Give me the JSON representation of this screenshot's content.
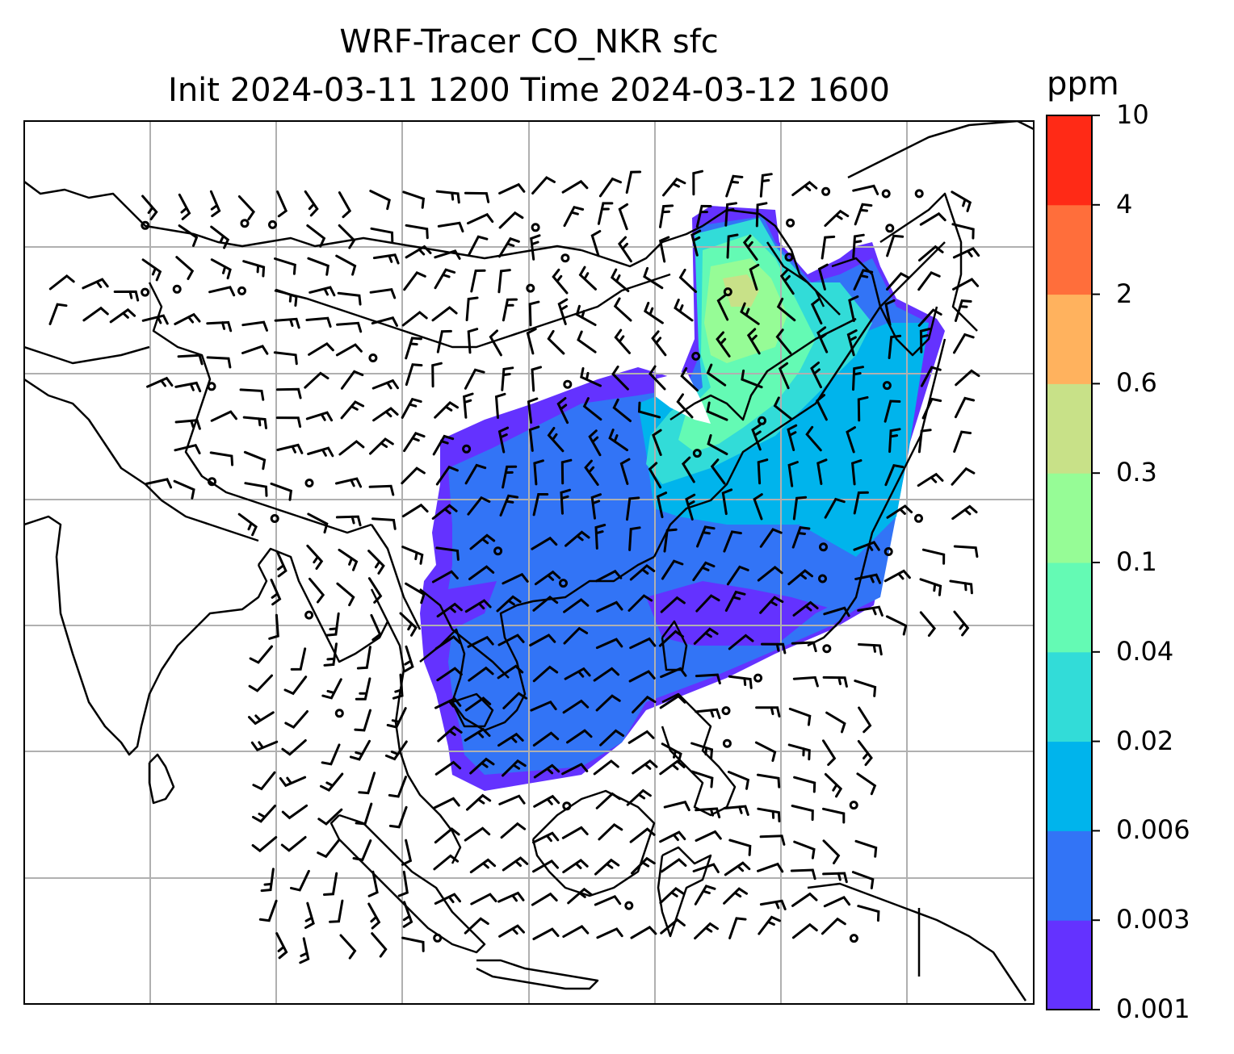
{
  "map": {
    "title_line1": "WRF-Tracer CO_NKR sfc",
    "title_line2": "Init 2024-03-11 1200 Time 2024-03-12 1600",
    "features": [
      "coastlines",
      "country-borders",
      "lat-lon-gridlines",
      "wind-barbs",
      "calm-wind-circles",
      "tracer-concentration-fill"
    ]
  },
  "colorbar": {
    "unit": "ppm",
    "ticks": [
      "10",
      "4",
      "2",
      "0.6",
      "0.3",
      "0.1",
      "0.04",
      "0.02",
      "0.006",
      "0.003",
      "0.001"
    ],
    "colors": [
      "#6432ff",
      "#3274f6",
      "#00b4ec",
      "#32dcd8",
      "#64fab4",
      "#96fc96",
      "#c8e188",
      "#ffb25e",
      "#ff6e3b",
      "#ff2a16"
    ]
  }
}
